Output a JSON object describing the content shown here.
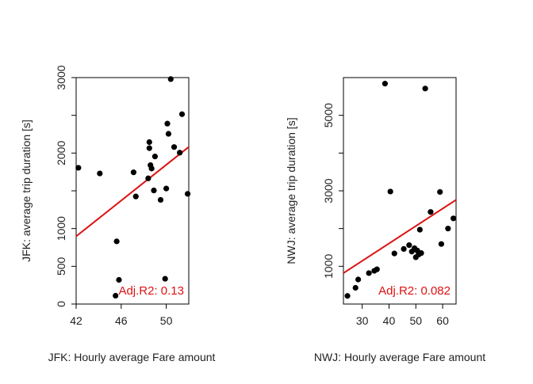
{
  "chart_data": [
    {
      "type": "scatter",
      "xlabel": "JFK: Hourly average Fare amount",
      "ylabel": "JFK: average trip duration [s]",
      "xlim": [
        42,
        52
      ],
      "ylim": [
        0,
        3000
      ],
      "x_ticks": [
        42,
        46,
        50
      ],
      "y_ticks": [
        0,
        500,
        1000,
        1500,
        2000,
        2500,
        3000
      ],
      "y_tick_labels": [
        0,
        500,
        1000,
        "",
        2000,
        "",
        3000
      ],
      "points": [
        {
          "x": 42.2,
          "y": 1805
        },
        {
          "x": 44.1,
          "y": 1730
        },
        {
          "x": 45.5,
          "y": 110
        },
        {
          "x": 45.6,
          "y": 830
        },
        {
          "x": 45.8,
          "y": 320
        },
        {
          "x": 47.1,
          "y": 1745
        },
        {
          "x": 47.3,
          "y": 1425
        },
        {
          "x": 48.4,
          "y": 1665
        },
        {
          "x": 48.5,
          "y": 2145
        },
        {
          "x": 48.5,
          "y": 2065
        },
        {
          "x": 48.6,
          "y": 1840
        },
        {
          "x": 48.7,
          "y": 1795
        },
        {
          "x": 48.9,
          "y": 1505
        },
        {
          "x": 49.0,
          "y": 1955
        },
        {
          "x": 49.5,
          "y": 1380
        },
        {
          "x": 49.9,
          "y": 335
        },
        {
          "x": 50.0,
          "y": 1530
        },
        {
          "x": 50.1,
          "y": 2390
        },
        {
          "x": 50.2,
          "y": 2255
        },
        {
          "x": 50.4,
          "y": 2980
        },
        {
          "x": 50.7,
          "y": 2080
        },
        {
          "x": 51.2,
          "y": 2005
        },
        {
          "x": 51.4,
          "y": 2515
        },
        {
          "x": 51.9,
          "y": 1460
        }
      ],
      "fit_line": {
        "x": [
          41.9,
          52.2
        ],
        "y": [
          885,
          2105
        ]
      },
      "annotation": "Adj.R2: 0.13",
      "annotation_color": "#dd1111",
      "fit_color": "#dd1111",
      "point_color": "#000000"
    },
    {
      "type": "scatter",
      "xlabel": "NWJ: Hourly average Fare amount",
      "ylabel": "NWJ: average trip duration [s]",
      "xlim": [
        23,
        65
      ],
      "ylim": [
        0,
        6000
      ],
      "x_ticks": [
        30,
        40,
        50,
        60
      ],
      "y_ticks": [
        1000,
        2000,
        3000,
        4000,
        5000
      ],
      "y_tick_labels": [
        1000,
        "",
        3000,
        "",
        5000
      ],
      "points": [
        {
          "x": 24.5,
          "y": 215
        },
        {
          "x": 27.5,
          "y": 430
        },
        {
          "x": 28.5,
          "y": 650
        },
        {
          "x": 32.5,
          "y": 820
        },
        {
          "x": 34.5,
          "y": 880
        },
        {
          "x": 35.5,
          "y": 920
        },
        {
          "x": 38.5,
          "y": 5840
        },
        {
          "x": 40.5,
          "y": 2980
        },
        {
          "x": 42.0,
          "y": 1340
        },
        {
          "x": 45.5,
          "y": 1460
        },
        {
          "x": 47.5,
          "y": 1560
        },
        {
          "x": 48.5,
          "y": 1390
        },
        {
          "x": 49.5,
          "y": 1480
        },
        {
          "x": 50.0,
          "y": 1240
        },
        {
          "x": 50.5,
          "y": 1420
        },
        {
          "x": 51.0,
          "y": 1310
        },
        {
          "x": 51.5,
          "y": 1970
        },
        {
          "x": 52.0,
          "y": 1350
        },
        {
          "x": 53.5,
          "y": 5710
        },
        {
          "x": 55.5,
          "y": 2440
        },
        {
          "x": 59.0,
          "y": 2970
        },
        {
          "x": 59.5,
          "y": 1590
        },
        {
          "x": 62.0,
          "y": 2000
        },
        {
          "x": 64.0,
          "y": 2270
        }
      ],
      "fit_line": {
        "x": [
          23,
          65
        ],
        "y": [
          820,
          2760
        ]
      },
      "annotation": "Adj.R2: 0.082",
      "annotation_color": "#dd1111",
      "fit_color": "#dd1111",
      "point_color": "#000000"
    }
  ]
}
